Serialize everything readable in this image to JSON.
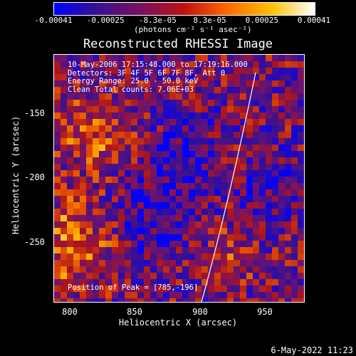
{
  "colorbar": {
    "tick_labels": [
      "-0.00041",
      "-0.00025",
      "-8.3e-05",
      "8.3e-05",
      "0.00025",
      "0.00041"
    ],
    "units": "(photons cm⁻² s⁻¹ asec⁻²)",
    "range": [
      -0.00041,
      0.00041
    ],
    "colors": [
      "#0000ff",
      "#3a1090",
      "#7a1060",
      "#c01010",
      "#ff6a00",
      "#ffc000",
      "#ffffff"
    ]
  },
  "title": "Reconstructed RHESSI Image",
  "info": {
    "line1": "10-May-2006 17:15:48.000 to 17:19:16.000",
    "line2": "Detectors: 3F 4F 5F 6F 7F 8F, Att 0",
    "line3": "Energy Range: 25.0 - 50.0 keV",
    "line4": "Clean     Total counts: 7.06E+03"
  },
  "peak_text": "Position of Peak = [785,-196]",
  "axes": {
    "xlabel": "Heliocentric X (arcsec)",
    "ylabel": "Heliocentric Y (arcsec)",
    "xticks": [
      "800",
      "850",
      "900",
      "950"
    ],
    "yticks": [
      "-150",
      "-200",
      "-250"
    ],
    "xlim": [
      788,
      982
    ],
    "ylim": [
      -296,
      -104
    ]
  },
  "timestamp": "6-May-2022 11:23"
}
